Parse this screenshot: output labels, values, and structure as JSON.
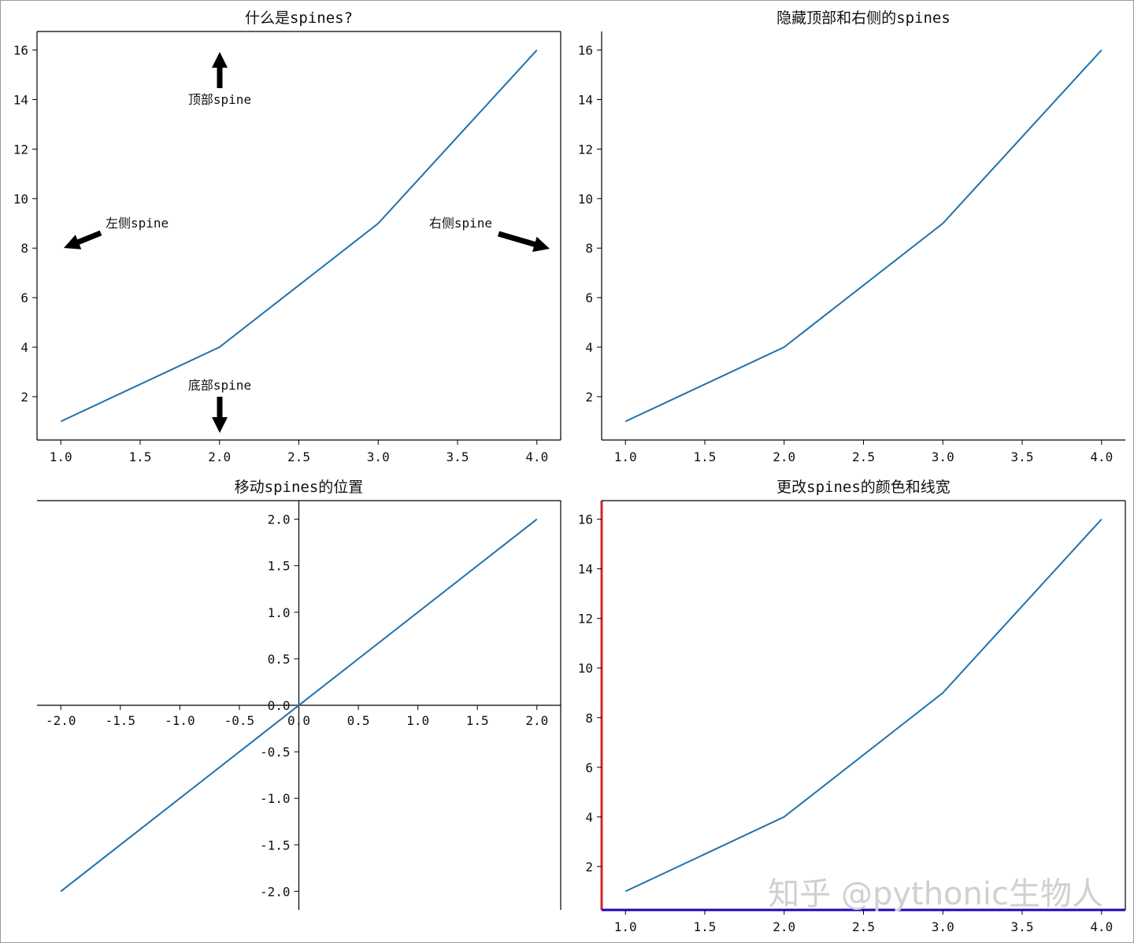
{
  "colors": {
    "line": "#1f72ad",
    "spine": "#000000",
    "left_spine_colored": "#d62728",
    "bottom_spine_colored": "#2200bb"
  },
  "watermark": "知乎 @pythonic生物人",
  "chart_data": [
    {
      "type": "line",
      "title": "什么是spines?",
      "x": [
        1,
        2,
        3,
        4
      ],
      "y": [
        1,
        4,
        9,
        16
      ],
      "xlim": [
        0.85,
        4.15
      ],
      "ylim": [
        0.25,
        16.75
      ],
      "xticks": [
        "1.0",
        "1.5",
        "2.0",
        "2.5",
        "3.0",
        "3.5",
        "4.0"
      ],
      "yticks": [
        "2",
        "4",
        "6",
        "8",
        "10",
        "12",
        "14",
        "16"
      ],
      "spines": [
        "left",
        "right",
        "top",
        "bottom"
      ],
      "annotations": [
        {
          "text": "顶部spine",
          "direction": "up"
        },
        {
          "text": "左侧spine",
          "direction": "left"
        },
        {
          "text": "右侧spine",
          "direction": "right"
        },
        {
          "text": "底部spine",
          "direction": "down"
        }
      ]
    },
    {
      "type": "line",
      "title": "隐藏顶部和右侧的spines",
      "x": [
        1,
        2,
        3,
        4
      ],
      "y": [
        1,
        4,
        9,
        16
      ],
      "xlim": [
        0.85,
        4.15
      ],
      "ylim": [
        0.25,
        16.75
      ],
      "xticks": [
        "1.0",
        "1.5",
        "2.0",
        "2.5",
        "3.0",
        "3.5",
        "4.0"
      ],
      "yticks": [
        "2",
        "4",
        "6",
        "8",
        "10",
        "12",
        "14",
        "16"
      ],
      "spines": [
        "left",
        "bottom"
      ]
    },
    {
      "type": "line",
      "title": "移动spines的位置",
      "x": [
        -2,
        2
      ],
      "y": [
        -2,
        2
      ],
      "xlim": [
        -2.2,
        2.2
      ],
      "ylim": [
        -2.2,
        2.2
      ],
      "xticks": [
        "-2.0",
        "-1.5",
        "-1.0",
        "-0.5",
        "0.0",
        "0.5",
        "1.0",
        "1.5",
        "2.0"
      ],
      "yticks": [
        "-2.0",
        "-1.5",
        "-1.0",
        "-0.5",
        "0.0",
        "0.5",
        "1.0",
        "1.5",
        "2.0"
      ],
      "spines": [
        "left at x=0",
        "bottom at y=0",
        "right",
        "top"
      ]
    },
    {
      "type": "line",
      "title": "更改spines的颜色和线宽",
      "x": [
        1,
        2,
        3,
        4
      ],
      "y": [
        1,
        4,
        9,
        16
      ],
      "xlim": [
        0.85,
        4.15
      ],
      "ylim": [
        0.25,
        16.75
      ],
      "xticks": [
        "1.0",
        "1.5",
        "2.0",
        "2.5",
        "3.0",
        "3.5",
        "4.0"
      ],
      "yticks": [
        "2",
        "4",
        "6",
        "8",
        "10",
        "12",
        "14",
        "16"
      ],
      "spines": [
        "left (red, thick)",
        "bottom (blue, thick)",
        "right",
        "top"
      ]
    }
  ]
}
